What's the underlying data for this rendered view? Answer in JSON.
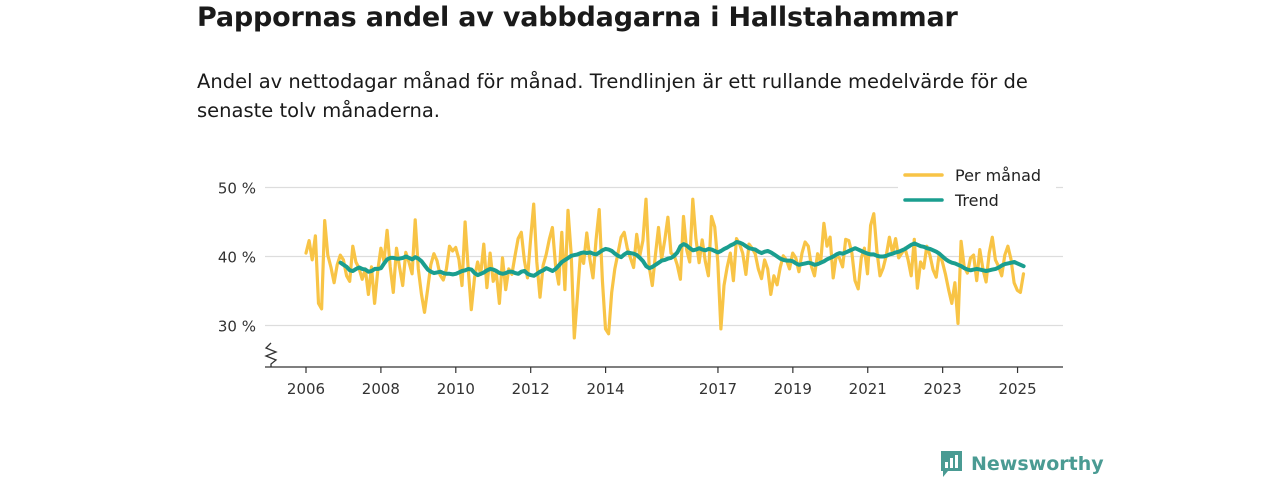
{
  "title": "Pappornas andel av vabbdagarna i Hallstahammar",
  "subtitle": "Andel av nettodagar månad för månad. Trendlinjen är ett rullande medelvärde för de senaste tolv månaderna.",
  "brand": "Newsworthy",
  "colors": {
    "monthly": "#f8c446",
    "trend": "#1a9e8f",
    "grid": "#dddddd",
    "axis": "#333333",
    "brand": "#4a9b93"
  },
  "chart_data": {
    "type": "line",
    "title": "Pappornas andel av vabbdagarna i Hallstahammar",
    "xlabel": "",
    "ylabel": "",
    "ylim": [
      25,
      52
    ],
    "y_ticks": [
      30,
      40,
      50
    ],
    "y_tick_labels": [
      "30 %",
      "40 %",
      "50 %"
    ],
    "x_ticks": [
      2006,
      2008,
      2010,
      2012,
      2014,
      2017,
      2019,
      2021,
      2023,
      2025
    ],
    "xlim": [
      2005.6,
      2026.3
    ],
    "legend": {
      "position": "top-right",
      "entries": [
        "Per månad",
        "Trend"
      ]
    },
    "series": [
      {
        "name": "Per månad",
        "x_start": 2006.0,
        "step": 0.0833,
        "values": [
          40.5,
          42.3,
          39.5,
          43.0,
          33.2,
          32.4,
          45.2,
          40.2,
          38.4,
          36.2,
          38.8,
          40.2,
          39.5,
          37.2,
          36.4,
          41.5,
          39.2,
          38.3,
          36.7,
          38.2,
          34.5,
          38.5,
          33.2,
          38.0,
          41.2,
          39.3,
          43.8,
          38.5,
          34.8,
          41.2,
          38.4,
          35.8,
          40.6,
          39.2,
          37.5,
          45.3,
          38.2,
          34.6,
          31.9,
          35.3,
          38.8,
          40.4,
          39.4,
          37.3,
          36.6,
          38.2,
          41.5,
          40.8,
          41.3,
          39.6,
          35.8,
          45.0,
          38.2,
          32.3,
          36.9,
          39.2,
          37.4,
          41.8,
          35.5,
          40.5,
          36.4,
          37.7,
          33.2,
          39.8,
          35.2,
          38.2,
          37.4,
          40.1,
          42.6,
          43.5,
          39.4,
          36.9,
          42.5,
          47.6,
          39.2,
          34.1,
          38.7,
          40.3,
          42.5,
          44.2,
          38.6,
          36.0,
          43.5,
          35.2,
          46.7,
          40.3,
          28.2,
          34.2,
          40.5,
          39.0,
          43.4,
          39.6,
          36.9,
          42.5,
          46.8,
          36.5,
          29.5,
          28.8,
          34.8,
          38.2,
          40.5,
          42.8,
          43.5,
          41.2,
          39.8,
          38.4,
          43.2,
          40.1,
          42.3,
          48.3,
          38.5,
          35.8,
          40.2,
          44.2,
          39.6,
          42.4,
          45.7,
          40.5,
          40.2,
          38.8,
          36.7,
          45.8,
          41.0,
          39.2,
          48.3,
          42.6,
          39.1,
          42.4,
          39.3,
          37.2,
          45.8,
          44.3,
          39.2,
          29.5,
          35.8,
          38.4,
          40.5,
          36.5,
          42.6,
          41.8,
          40.5,
          37.4,
          41.8,
          41.2,
          40.4,
          38.2,
          36.8,
          39.5,
          38.2,
          34.5,
          37.2,
          35.9,
          38.4,
          40.1,
          39.5,
          38.2,
          40.5,
          39.8,
          37.8,
          40.5,
          42.1,
          41.5,
          38.6,
          37.2,
          40.4,
          39.2,
          44.8,
          41.5,
          42.8,
          36.9,
          40.2,
          39.8,
          38.5,
          42.5,
          42.3,
          40.5,
          36.5,
          35.3,
          39.8,
          41.2,
          37.5,
          44.5,
          46.2,
          40.8,
          37.2,
          38.3,
          40.1,
          42.8,
          40.5,
          42.6,
          39.8,
          40.5,
          41.2,
          39.5,
          37.2,
          42.5,
          35.4,
          39.2,
          38.3,
          41.5,
          40.2,
          38.1,
          37.0,
          40.5,
          39.2,
          37.4,
          35.2,
          33.2,
          36.2,
          30.3,
          42.2,
          38.5,
          37.6,
          39.8,
          40.2,
          36.5,
          41.0,
          38.2,
          36.3,
          40.5,
          42.8,
          39.5,
          38.6,
          37.2,
          40.2,
          41.5,
          39.6,
          36.2,
          35.1,
          34.8,
          37.5
        ]
      },
      {
        "name": "Trend",
        "x_start": 2006.92,
        "step": 0.0833,
        "values": [
          39.1,
          38.8,
          38.5,
          38.0,
          37.9,
          38.2,
          38.4,
          38.2,
          38.1,
          37.8,
          37.9,
          38.2,
          38.2,
          38.3,
          39.0,
          39.6,
          39.8,
          39.8,
          39.7,
          39.7,
          39.8,
          40.0,
          39.8,
          39.6,
          39.9,
          39.7,
          39.3,
          38.7,
          38.1,
          37.8,
          37.6,
          37.7,
          37.8,
          37.6,
          37.5,
          37.5,
          37.4,
          37.5,
          37.7,
          37.9,
          38.0,
          38.2,
          38.1,
          37.6,
          37.3,
          37.5,
          37.7,
          38.0,
          38.2,
          38.1,
          37.9,
          37.6,
          37.5,
          37.6,
          37.8,
          37.8,
          37.6,
          37.5,
          37.8,
          37.9,
          37.5,
          37.3,
          37.2,
          37.5,
          37.8,
          38.0,
          38.3,
          38.1,
          37.9,
          38.2,
          38.7,
          39.2,
          39.5,
          39.8,
          40.1,
          40.2,
          40.3,
          40.5,
          40.6,
          40.5,
          40.6,
          40.4,
          40.3,
          40.6,
          40.9,
          41.1,
          41.0,
          40.8,
          40.4,
          40.1,
          39.9,
          40.3,
          40.6,
          40.5,
          40.4,
          40.2,
          39.8,
          39.3,
          38.6,
          38.3,
          38.5,
          38.8,
          39.1,
          39.4,
          39.5,
          39.7,
          39.8,
          40.1,
          40.6,
          41.5,
          41.8,
          41.6,
          41.2,
          40.9,
          41.0,
          41.2,
          41.0,
          40.9,
          41.1,
          41.0,
          40.8,
          40.6,
          40.8,
          41.1,
          41.3,
          41.6,
          41.8,
          42.1,
          42.0,
          41.8,
          41.5,
          41.2,
          41.1,
          41.0,
          40.7,
          40.5,
          40.7,
          40.8,
          40.6,
          40.3,
          40.0,
          39.7,
          39.5,
          39.4,
          39.4,
          39.3,
          39.0,
          38.8,
          38.9,
          39.0,
          39.1,
          39.0,
          38.8,
          38.9,
          39.1,
          39.3,
          39.6,
          39.8,
          40.0,
          40.3,
          40.5,
          40.4,
          40.6,
          40.8,
          41.0,
          41.2,
          41.0,
          40.8,
          40.6,
          40.4,
          40.3,
          40.3,
          40.1,
          40.0,
          40.0,
          40.1,
          40.3,
          40.4,
          40.6,
          40.7,
          40.9,
          41.1,
          41.4,
          41.7,
          41.9,
          41.7,
          41.5,
          41.4,
          41.2,
          41.1,
          40.9,
          40.7,
          40.4,
          40.0,
          39.6,
          39.3,
          39.1,
          39.0,
          38.8,
          38.6,
          38.3,
          38.1,
          38.0,
          38.1,
          38.2,
          38.1,
          38.0,
          37.9,
          38.0,
          38.1,
          38.2,
          38.4,
          38.7,
          38.9,
          39.0,
          39.1,
          39.2,
          39.0,
          38.8,
          38.6
        ]
      }
    ]
  }
}
